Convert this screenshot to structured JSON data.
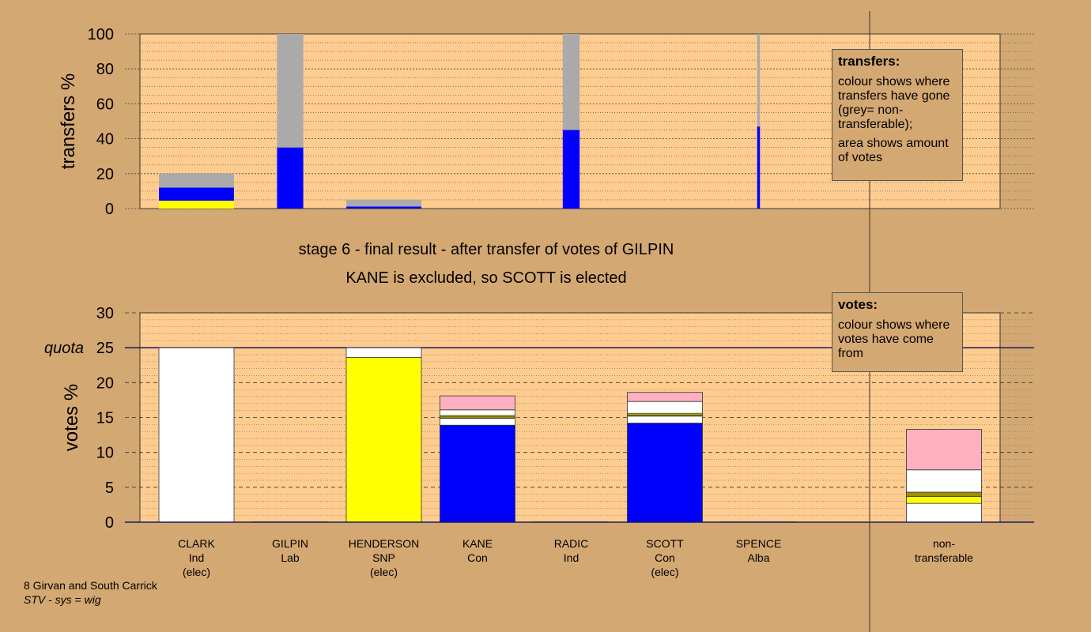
{
  "stage": {
    "line1": "stage 6 - final result - after transfer of votes of GILPIN",
    "line2": "KANE is excluded, so SCOTT is elected"
  },
  "footer": {
    "area": "8 Girvan and South Carrick",
    "system": "STV - sys = wig"
  },
  "legend_transfers": {
    "title": "transfers:",
    "p1": "colour shows where transfers have gone (grey= non-transferable);",
    "p2": "area shows amount of votes"
  },
  "legend_votes": {
    "title": "votes:",
    "p1": "colour shows where votes have come from"
  },
  "colors": {
    "background": "#d4a872",
    "plot_bg": "#ffcc8f",
    "white": "#ffffff",
    "yellow": "#ffff00",
    "blue": "#0000ff",
    "grey": "#aaaaaa",
    "pink": "#ffb0c0",
    "olive": "#a09000"
  },
  "chart_data": [
    {
      "type": "bar",
      "name": "transfers",
      "ylabel": "transfers %",
      "ylim": [
        0,
        100
      ],
      "yticks": [
        0,
        20,
        40,
        60,
        80,
        100
      ],
      "bars": [
        {
          "column": 0,
          "width": 0.8,
          "segments": [
            {
              "color": "yellow",
              "value": 4.5
            },
            {
              "color": "blue",
              "value": 7.5
            },
            {
              "color": "grey",
              "value": 8
            }
          ]
        },
        {
          "column": 1,
          "width": 0.28,
          "segments": [
            {
              "color": "blue",
              "value": 35
            },
            {
              "color": "grey",
              "value": 65
            }
          ]
        },
        {
          "column": 2,
          "width": 0.8,
          "segments": [
            {
              "color": "blue",
              "value": 1.2
            },
            {
              "color": "grey",
              "value": 4
            }
          ]
        },
        {
          "column": 4,
          "width": 0.18,
          "segments": [
            {
              "color": "blue",
              "value": 45
            },
            {
              "color": "grey",
              "value": 55
            }
          ]
        },
        {
          "column": 6,
          "width": 0.03,
          "segments": [
            {
              "color": "blue",
              "value": 47
            },
            {
              "color": "grey",
              "value": 53
            }
          ]
        }
      ]
    },
    {
      "type": "bar",
      "name": "votes",
      "ylabel": "votes %",
      "ylim": [
        0,
        30
      ],
      "yticks": [
        0,
        5,
        10,
        15,
        20,
        25,
        30
      ],
      "quota": {
        "label": "quota",
        "value": 25
      },
      "categories": [
        {
          "name": "CLARK",
          "party": "Ind",
          "status": "(elec)"
        },
        {
          "name": "GILPIN",
          "party": "Lab",
          "status": ""
        },
        {
          "name": "HENDERSON",
          "party": "SNP",
          "status": "(elec)"
        },
        {
          "name": "KANE",
          "party": "Con",
          "status": ""
        },
        {
          "name": "RADIC",
          "party": "Ind",
          "status": ""
        },
        {
          "name": "SCOTT",
          "party": "Con",
          "status": "(elec)"
        },
        {
          "name": "SPENCE",
          "party": "Alba",
          "status": ""
        }
      ],
      "nontransferable_label": [
        "non-",
        "transferable"
      ],
      "bars": [
        {
          "column": 0,
          "segments": [
            {
              "color": "white",
              "value": 25
            }
          ]
        },
        {
          "column": 1,
          "segments": [
            {
              "color": "white",
              "value": 0.05
            }
          ]
        },
        {
          "column": 2,
          "segments": [
            {
              "color": "yellow",
              "value": 23.6
            },
            {
              "color": "white",
              "value": 1.4
            }
          ]
        },
        {
          "column": 3,
          "segments": [
            {
              "color": "blue",
              "value": 13.9
            },
            {
              "color": "white",
              "value": 1.0
            },
            {
              "color": "olive",
              "value": 0.2
            },
            {
              "color": "yellow",
              "value": 0.2
            },
            {
              "color": "white",
              "value": 0.8
            },
            {
              "color": "pink",
              "value": 2.0
            }
          ]
        },
        {
          "column": 4,
          "segments": [
            {
              "color": "white",
              "value": 0.05
            }
          ]
        },
        {
          "column": 5,
          "segments": [
            {
              "color": "blue",
              "value": 14.2
            },
            {
              "color": "white",
              "value": 1.0
            },
            {
              "color": "olive",
              "value": 0.2
            },
            {
              "color": "yellow",
              "value": 0.2
            },
            {
              "color": "white",
              "value": 1.7
            },
            {
              "color": "pink",
              "value": 1.3
            }
          ]
        },
        {
          "column": 6,
          "segments": [
            {
              "color": "white",
              "value": 0.05
            }
          ]
        },
        {
          "column": 7,
          "segments": [
            {
              "color": "white",
              "value": 2.7
            },
            {
              "color": "yellow",
              "value": 1.0
            },
            {
              "color": "olive",
              "value": 0.6
            },
            {
              "color": "white",
              "value": 3.2
            },
            {
              "color": "pink",
              "value": 5.8
            }
          ]
        }
      ]
    }
  ]
}
